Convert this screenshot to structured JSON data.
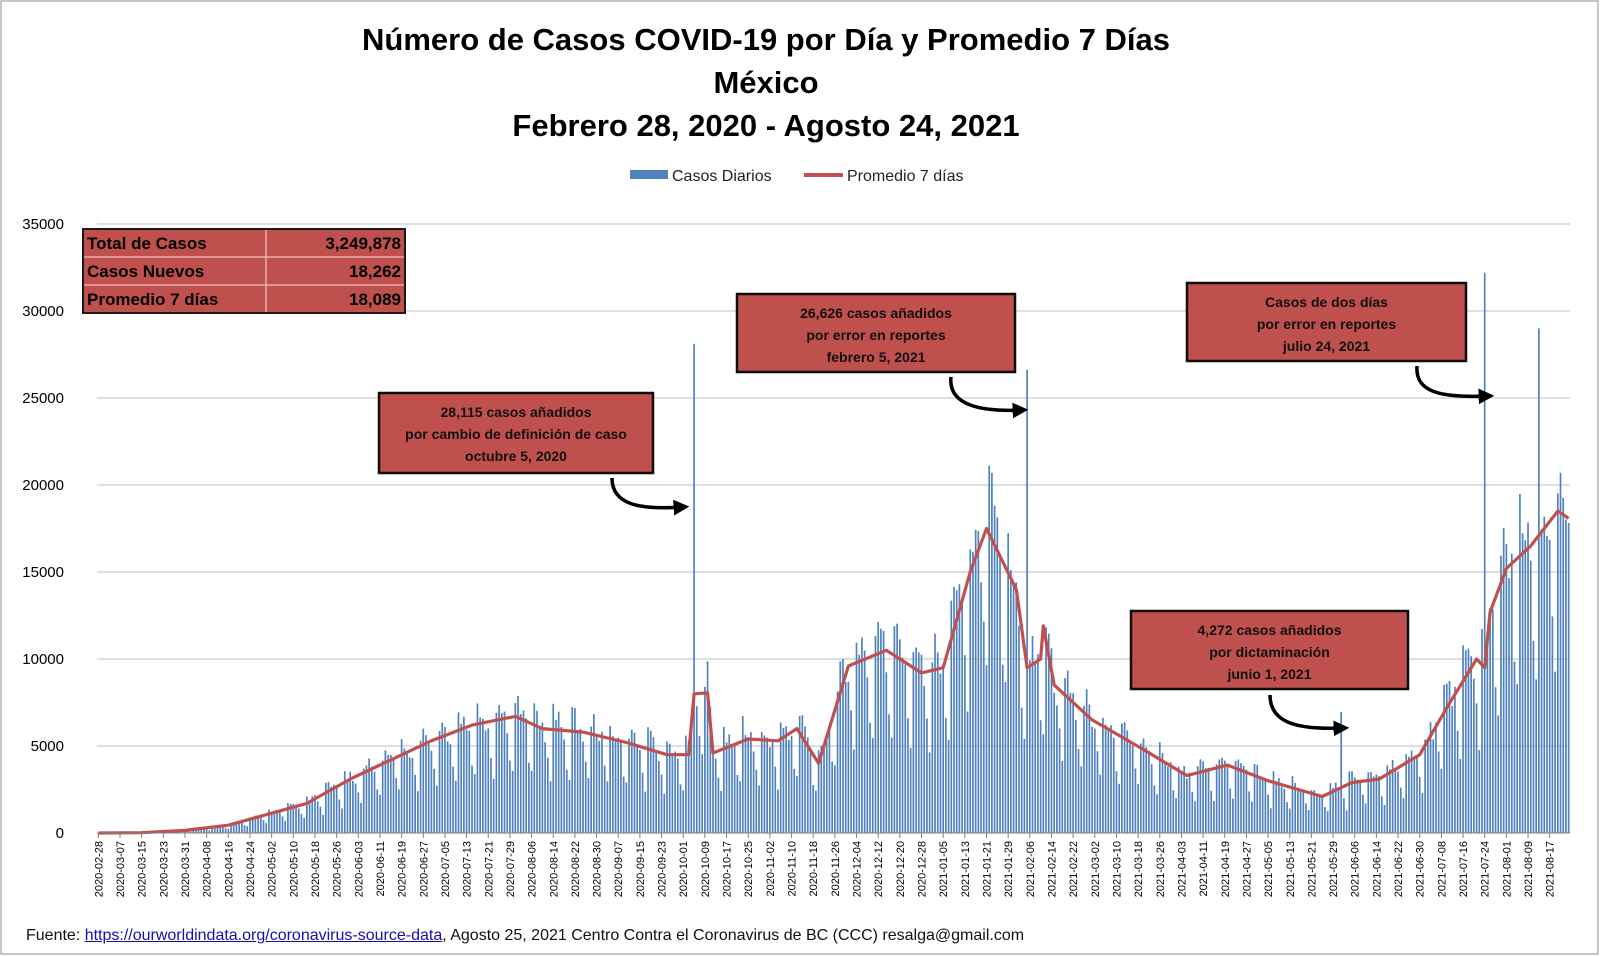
{
  "chart_data": {
    "type": "bar+line",
    "title_lines": [
      "Número de  Casos  COVID-19 por Día y Promedio 7 Días",
      "México",
      "Febrero 28, 2020 - Agosto 24, 2021"
    ],
    "legend": [
      "Casos Diarios",
      "Promedio 7 días"
    ],
    "legend_position": "top-center",
    "grid": true,
    "ylim": [
      0,
      35000
    ],
    "yticks": [
      0,
      5000,
      10000,
      15000,
      20000,
      25000,
      30000,
      35000
    ],
    "x_start": "2020-02-28",
    "x_end": "2021-08-24",
    "x_tick_labels": [
      "2020-02-28",
      "2020-03-07",
      "2020-03-15",
      "2020-03-23",
      "2020-03-31",
      "2020-04-08",
      "2020-04-16",
      "2020-04-24",
      "2020-05-02",
      "2020-05-10",
      "2020-05-18",
      "2020-05-26",
      "2020-06-03",
      "2020-06-11",
      "2020-06-19",
      "2020-06-27",
      "2020-07-05",
      "2020-07-13",
      "2020-07-21",
      "2020-07-29",
      "2020-08-06",
      "2020-08-14",
      "2020-08-22",
      "2020-08-30",
      "2020-09-07",
      "2020-09-15",
      "2020-09-23",
      "2020-10-01",
      "2020-10-09",
      "2020-10-17",
      "2020-10-25",
      "2020-11-02",
      "2020-11-10",
      "2020-11-18",
      "2020-11-26",
      "2020-12-04",
      "2020-12-12",
      "2020-12-20",
      "2020-12-28",
      "2021-01-05",
      "2021-01-13",
      "2021-01-21",
      "2021-01-29",
      "2021-02-06",
      "2021-02-14",
      "2021-02-22",
      "2021-03-02",
      "2021-03-10",
      "2021-03-18",
      "2021-03-26",
      "2021-04-03",
      "2021-04-11",
      "2021-04-19",
      "2021-04-27",
      "2021-05-05",
      "2021-05-13",
      "2021-05-21",
      "2021-05-29",
      "2021-06-06",
      "2021-06-14",
      "2021-06-22",
      "2021-06-30",
      "2021-07-08",
      "2021-07-16",
      "2021-07-24",
      "2021-08-01",
      "2021-08-09",
      "2021-08-17"
    ],
    "series": [
      {
        "name": "Promedio 7 días",
        "type": "line",
        "color": "#c0504d",
        "points": [
          [
            "2020-02-28",
            0
          ],
          [
            "2020-03-15",
            20
          ],
          [
            "2020-03-31",
            150
          ],
          [
            "2020-04-16",
            450
          ],
          [
            "2020-04-30",
            1050
          ],
          [
            "2020-05-15",
            1700
          ],
          [
            "2020-05-31",
            3100
          ],
          [
            "2020-06-15",
            4200
          ],
          [
            "2020-06-30",
            5300
          ],
          [
            "2020-07-15",
            6200
          ],
          [
            "2020-07-31",
            6700
          ],
          [
            "2020-08-10",
            6000
          ],
          [
            "2020-08-25",
            5800
          ],
          [
            "2020-09-10",
            5200
          ],
          [
            "2020-09-25",
            4500
          ],
          [
            "2020-10-03",
            4500
          ],
          [
            "2020-10-05",
            8000
          ],
          [
            "2020-10-10",
            8050
          ],
          [
            "2020-10-12",
            4600
          ],
          [
            "2020-10-25",
            5400
          ],
          [
            "2020-11-05",
            5300
          ],
          [
            "2020-11-12",
            6000
          ],
          [
            "2020-11-20",
            4000
          ],
          [
            "2020-12-01",
            9600
          ],
          [
            "2020-12-15",
            10500
          ],
          [
            "2020-12-28",
            9200
          ],
          [
            "2021-01-05",
            9500
          ],
          [
            "2021-01-15",
            15000
          ],
          [
            "2021-01-21",
            17500
          ],
          [
            "2021-02-01",
            14000
          ],
          [
            "2021-02-05",
            9500
          ],
          [
            "2021-02-10",
            10000
          ],
          [
            "2021-02-11",
            11900
          ],
          [
            "2021-02-15",
            8500
          ],
          [
            "2021-03-01",
            6500
          ],
          [
            "2021-03-20",
            4800
          ],
          [
            "2021-04-05",
            3300
          ],
          [
            "2021-04-20",
            3900
          ],
          [
            "2021-05-05",
            3000
          ],
          [
            "2021-05-25",
            2100
          ],
          [
            "2021-06-05",
            2900
          ],
          [
            "2021-06-15",
            3100
          ],
          [
            "2021-06-30",
            4500
          ],
          [
            "2021-07-10",
            7200
          ],
          [
            "2021-07-21",
            10000
          ],
          [
            "2021-07-24",
            9500
          ],
          [
            "2021-07-26",
            12700
          ],
          [
            "2021-08-01",
            15200
          ],
          [
            "2021-08-10",
            16500
          ],
          [
            "2021-08-20",
            18500
          ],
          [
            "2021-08-24",
            18089
          ]
        ]
      },
      {
        "name": "Casos Diarios",
        "type": "bar",
        "color": "#4f81bd",
        "highlighted_values": [
          {
            "date": "2020-10-05",
            "value": 28115
          },
          {
            "date": "2021-02-05",
            "value": 26626
          },
          {
            "date": "2021-06-01",
            "value": 6950
          },
          {
            "date": "2021-07-24",
            "value": 32200
          },
          {
            "date": "2021-08-13",
            "value": 29000
          }
        ]
      }
    ],
    "stats_table": [
      {
        "label": "Total de Casos",
        "value": "3,249,878"
      },
      {
        "label": "Casos Nuevos",
        "value": "18,262"
      },
      {
        "label": "Promedio 7 días",
        "value": "18,089"
      }
    ],
    "annotations": [
      {
        "lines": [
          "28,115 casos  añadidos",
          "por cambio de definición de caso",
          "octubre 5, 2020"
        ],
        "points_to": "2020-10-05"
      },
      {
        "lines": [
          "26,626 casos  añadidos",
          "por error en reportes",
          "febrero  5, 2021"
        ],
        "points_to": "2021-02-05"
      },
      {
        "lines": [
          "Casos de dos días",
          "por error en reportes",
          "julio 24, 2021"
        ],
        "points_to": "2021-07-24"
      },
      {
        "lines": [
          "4,272 casos  añadidos",
          "por dictaminación",
          "junio 1, 2021"
        ],
        "points_to": "2021-06-01"
      }
    ]
  },
  "footer": {
    "prefix": "Fuente: ",
    "link_text": "https://ourworldindata.org/coronavirus-source-data",
    "suffix": ",  Agosto 25, 2021    Centro  Contra el Coronavirus de BC  (CCC) resalga@gmail.com"
  },
  "colors": {
    "bar": "#4f81bd",
    "line": "#c0504d",
    "box_fill": "#c0504d",
    "grid": "#bfbfbf"
  }
}
